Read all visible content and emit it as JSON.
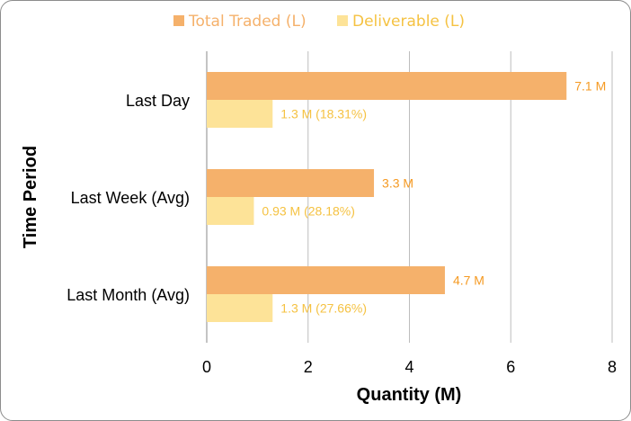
{
  "chart_data": {
    "type": "bar",
    "orientation": "horizontal",
    "categories": [
      "Last Day",
      "Last Week (Avg)",
      "Last Month (Avg)"
    ],
    "series": [
      {
        "name": "Total Traded (L)",
        "color": "#f5b16b",
        "label_color": "#f59a23",
        "values": [
          7.1,
          3.3,
          4.7
        ],
        "labels": [
          "7.1 M",
          "3.3 M",
          "4.7 M"
        ]
      },
      {
        "name": "Deliverable (L)",
        "color": "#fde398",
        "label_color": "#f5c242",
        "values": [
          1.3,
          0.93,
          1.3
        ],
        "labels": [
          "1.3 M (18.31%)",
          "0.93 M (28.18%)",
          "1.3 M (27.66%)"
        ]
      }
    ],
    "xlabel": "Quantity (M)",
    "ylabel": "Time Period",
    "xlim": [
      0,
      8
    ],
    "xticks": [
      0,
      2,
      4,
      6,
      8
    ],
    "grid": true,
    "legend": "top"
  }
}
